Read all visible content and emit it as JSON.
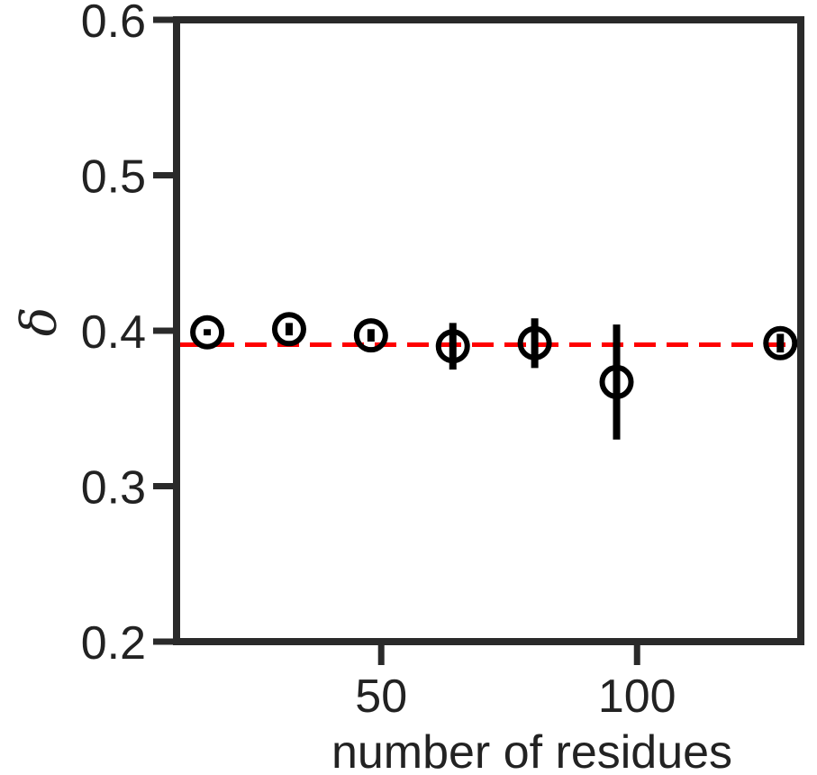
{
  "chart_data": {
    "type": "scatter",
    "title": "",
    "xlabel": "number of residues",
    "ylabel": "δ",
    "xlim": [
      10,
      132
    ],
    "ylim": [
      0.2,
      0.6
    ],
    "xticks": [
      50,
      100
    ],
    "xtick_labels": [
      "50",
      "100"
    ],
    "yticks": [
      0.2,
      0.3,
      0.4,
      0.5,
      0.6
    ],
    "ytick_labels": [
      "0.2",
      "0.3",
      "0.4",
      "0.5",
      "0.6"
    ],
    "grid": false,
    "series": [
      {
        "marker": "open-circle",
        "color": "#000000",
        "points": [
          {
            "x": 16,
            "y": 0.399,
            "err": 0.002
          },
          {
            "x": 32,
            "y": 0.401,
            "err": 0.004
          },
          {
            "x": 48,
            "y": 0.397,
            "err": 0.004
          },
          {
            "x": 64,
            "y": 0.39,
            "err": 0.015
          },
          {
            "x": 80,
            "y": 0.392,
            "err": 0.016
          },
          {
            "x": 96,
            "y": 0.367,
            "err": 0.037
          },
          {
            "x": 128,
            "y": 0.392,
            "err": 0.006
          }
        ]
      }
    ],
    "reference_line": {
      "y": 0.391,
      "style": "dashed",
      "color": "#ff0000"
    }
  }
}
